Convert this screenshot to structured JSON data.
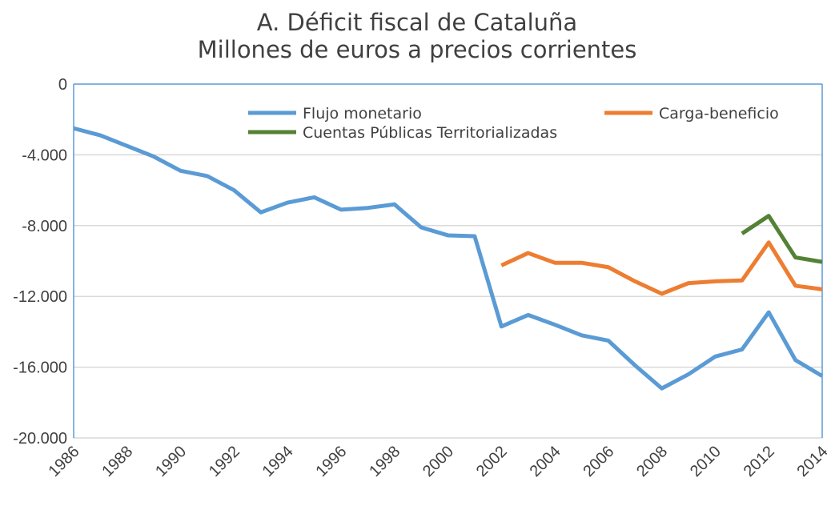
{
  "chart_data": {
    "type": "line",
    "title": "A. Déficit fiscal de Cataluña",
    "subtitle": "Millones de euros a precios corrientes",
    "xlabel": "",
    "ylabel": "",
    "x": [
      1986,
      1987,
      1988,
      1989,
      1990,
      1991,
      1992,
      1993,
      1994,
      1995,
      1996,
      1997,
      1998,
      1999,
      2000,
      2001,
      2002,
      2003,
      2004,
      2005,
      2006,
      2007,
      2008,
      2009,
      2010,
      2011,
      2012,
      2013,
      2014
    ],
    "xlim": [
      1986,
      2014
    ],
    "ylim": [
      -20000,
      0
    ],
    "x_ticks": [
      "1986",
      "1988",
      "1990",
      "1992",
      "1994",
      "1996",
      "1998",
      "2000",
      "2002",
      "2004",
      "2006",
      "2008",
      "2010",
      "2012",
      "2014"
    ],
    "y_ticks": [
      0,
      -4000,
      -8000,
      -12000,
      -16000,
      -20000
    ],
    "y_tick_labels": [
      "0",
      "-4.000",
      "-8.000",
      "-12.000",
      "-16.000",
      "-20.000"
    ],
    "grid": true,
    "legend_position": "top",
    "series": [
      {
        "name": "Flujo monetario",
        "color": "#5b9bd5",
        "values": [
          -2500,
          -2900,
          -3500,
          -4100,
          -4900,
          -5200,
          -6000,
          -7250,
          -6700,
          -6400,
          -7100,
          -7000,
          -6800,
          -8100,
          -8550,
          -8600,
          -13700,
          -13050,
          -13600,
          -14200,
          -14500,
          -15900,
          -17200,
          -16400,
          -15400,
          -15000,
          -12900,
          -15600,
          -16500
        ]
      },
      {
        "name": "Carga-beneficio",
        "color": "#ed7d31",
        "values": [
          null,
          null,
          null,
          null,
          null,
          null,
          null,
          null,
          null,
          null,
          null,
          null,
          null,
          null,
          null,
          null,
          -10250,
          -9550,
          -10100,
          -10100,
          -10350,
          -11150,
          -11850,
          -11250,
          -11150,
          -11100,
          -8950,
          -11400,
          -11600
        ]
      },
      {
        "name": "Cuentas Públicas Territorializadas",
        "color": "#548235",
        "values": [
          null,
          null,
          null,
          null,
          null,
          null,
          null,
          null,
          null,
          null,
          null,
          null,
          null,
          null,
          null,
          null,
          null,
          null,
          null,
          null,
          null,
          null,
          null,
          null,
          null,
          -8450,
          -7450,
          -9800,
          -10050
        ]
      }
    ]
  }
}
